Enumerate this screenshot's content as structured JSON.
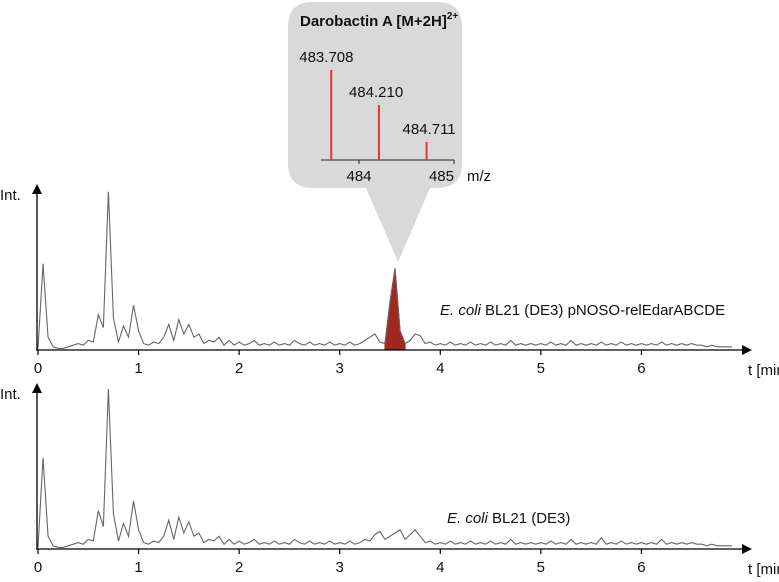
{
  "chart_data": [
    {
      "type": "line",
      "x_label": "t [min]",
      "y_label": "Int.",
      "label_italic": "E. coli",
      "label_rest": " BL21 (DE3) pNOSO-relEdarABCDE",
      "color": "#666666",
      "highlight_range": [
        3.45,
        3.65
      ],
      "highlight_color": "#a0281e",
      "xlim": [
        0,
        7.0
      ],
      "xticks": [
        0,
        1,
        2,
        3,
        4,
        5,
        6
      ],
      "ylim": [
        0,
        100
      ],
      "x": [
        0,
        0.05,
        0.1,
        0.15,
        0.2,
        0.25,
        0.3,
        0.35,
        0.4,
        0.45,
        0.5,
        0.55,
        0.6,
        0.65,
        0.7,
        0.75,
        0.8,
        0.85,
        0.9,
        0.95,
        1,
        1.05,
        1.1,
        1.15,
        1.2,
        1.25,
        1.3,
        1.35,
        1.4,
        1.45,
        1.5,
        1.55,
        1.6,
        1.65,
        1.7,
        1.75,
        1.8,
        1.85,
        1.9,
        1.95,
        2,
        2.05,
        2.1,
        2.15,
        2.2,
        2.25,
        2.3,
        2.35,
        2.4,
        2.45,
        2.5,
        2.55,
        2.6,
        2.65,
        2.7,
        2.75,
        2.8,
        2.85,
        2.9,
        2.95,
        3,
        3.05,
        3.1,
        3.15,
        3.2,
        3.25,
        3.3,
        3.35,
        3.4,
        3.45,
        3.5,
        3.55,
        3.6,
        3.65,
        3.7,
        3.75,
        3.8,
        3.85,
        3.9,
        3.95,
        4,
        4.05,
        4.1,
        4.15,
        4.2,
        4.25,
        4.3,
        4.35,
        4.4,
        4.45,
        4.5,
        4.55,
        4.6,
        4.65,
        4.7,
        4.75,
        4.8,
        4.85,
        4.9,
        4.95,
        5,
        5.05,
        5.1,
        5.15,
        5.2,
        5.25,
        5.3,
        5.35,
        5.4,
        5.45,
        5.5,
        5.55,
        5.6,
        5.65,
        5.7,
        5.75,
        5.8,
        5.85,
        5.9,
        5.95,
        6,
        6.05,
        6.1,
        6.15,
        6.2,
        6.25,
        6.3,
        6.35,
        6.4,
        6.45,
        6.5,
        6.55,
        6.6,
        6.65,
        6.7,
        6.75,
        6.8,
        6.85,
        6.9
      ],
      "values": [
        1,
        54,
        8,
        2,
        1,
        1,
        2,
        3,
        4,
        3,
        6,
        5,
        22,
        14,
        99,
        20,
        5,
        15,
        8,
        28,
        12,
        4,
        3,
        5,
        4,
        8,
        16,
        6,
        19,
        10,
        16,
        8,
        10,
        4,
        6,
        5,
        8,
        3,
        6,
        3,
        5,
        3,
        4,
        6,
        3,
        4,
        3,
        5,
        3,
        4,
        3,
        6,
        4,
        3,
        5,
        3,
        4,
        3,
        5,
        3,
        4,
        3,
        5,
        3,
        4,
        6,
        8,
        10,
        5,
        4,
        30,
        51,
        12,
        4,
        6,
        10,
        9,
        4,
        5,
        3,
        4,
        3,
        5,
        3,
        4,
        3,
        5,
        3,
        4,
        3,
        5,
        3,
        4,
        3,
        6,
        3,
        4,
        3,
        4,
        3,
        4,
        3,
        5,
        3,
        4,
        3,
        6,
        3,
        4,
        3,
        4,
        3,
        5,
        3,
        4,
        3,
        5,
        3,
        4,
        3,
        4,
        3,
        4,
        3,
        5,
        3,
        4,
        3,
        4,
        3,
        4,
        3,
        3,
        2,
        3,
        2,
        2,
        2,
        2
      ]
    },
    {
      "type": "line",
      "x_label": "t [min]",
      "y_label": "Int.",
      "label_italic": "E. coli",
      "label_rest": " BL21 (DE3)",
      "color": "#666666",
      "xlim": [
        0,
        7.0
      ],
      "xticks": [
        0,
        1,
        2,
        3,
        4,
        5,
        6
      ],
      "ylim": [
        0,
        100
      ],
      "x": [
        0,
        0.05,
        0.1,
        0.15,
        0.2,
        0.25,
        0.3,
        0.35,
        0.4,
        0.45,
        0.5,
        0.55,
        0.6,
        0.65,
        0.7,
        0.75,
        0.8,
        0.85,
        0.9,
        0.95,
        1,
        1.05,
        1.1,
        1.15,
        1.2,
        1.25,
        1.3,
        1.35,
        1.4,
        1.45,
        1.5,
        1.55,
        1.6,
        1.65,
        1.7,
        1.75,
        1.8,
        1.85,
        1.9,
        1.95,
        2,
        2.05,
        2.1,
        2.15,
        2.2,
        2.25,
        2.3,
        2.35,
        2.4,
        2.45,
        2.5,
        2.55,
        2.6,
        2.65,
        2.7,
        2.75,
        2.8,
        2.85,
        2.9,
        2.95,
        3,
        3.05,
        3.1,
        3.15,
        3.2,
        3.25,
        3.3,
        3.35,
        3.4,
        3.45,
        3.5,
        3.55,
        3.6,
        3.65,
        3.7,
        3.75,
        3.8,
        3.85,
        3.9,
        3.95,
        4,
        4.05,
        4.1,
        4.15,
        4.2,
        4.25,
        4.3,
        4.35,
        4.4,
        4.45,
        4.5,
        4.55,
        4.6,
        4.65,
        4.7,
        4.75,
        4.8,
        4.85,
        4.9,
        4.95,
        5,
        5.05,
        5.1,
        5.15,
        5.2,
        5.25,
        5.3,
        5.35,
        5.4,
        5.45,
        5.5,
        5.55,
        5.6,
        5.65,
        5.7,
        5.75,
        5.8,
        5.85,
        5.9,
        5.95,
        6,
        6.05,
        6.1,
        6.15,
        6.2,
        6.25,
        6.3,
        6.35,
        6.4,
        6.45,
        6.5,
        6.55,
        6.6,
        6.65,
        6.7,
        6.75,
        6.8,
        6.85,
        6.9
      ],
      "values": [
        1,
        57,
        8,
        2,
        1,
        1,
        2,
        3,
        4,
        3,
        6,
        5,
        24,
        14,
        100,
        22,
        5,
        16,
        8,
        30,
        12,
        4,
        3,
        5,
        4,
        8,
        18,
        6,
        20,
        10,
        17,
        8,
        10,
        4,
        6,
        5,
        8,
        3,
        6,
        3,
        5,
        3,
        4,
        6,
        3,
        4,
        3,
        5,
        3,
        4,
        3,
        6,
        4,
        3,
        5,
        3,
        4,
        3,
        5,
        3,
        4,
        3,
        5,
        3,
        4,
        6,
        5,
        9,
        11,
        6,
        8,
        10,
        12,
        6,
        9,
        12,
        8,
        4,
        5,
        3,
        4,
        3,
        5,
        3,
        4,
        3,
        5,
        3,
        4,
        3,
        5,
        3,
        4,
        3,
        6,
        3,
        4,
        3,
        4,
        3,
        4,
        3,
        5,
        3,
        4,
        3,
        6,
        3,
        4,
        3,
        4,
        3,
        7,
        3,
        4,
        3,
        5,
        3,
        4,
        3,
        4,
        3,
        4,
        3,
        6,
        3,
        4,
        3,
        4,
        3,
        4,
        3,
        3,
        2,
        3,
        2,
        2,
        2,
        2
      ]
    },
    {
      "type": "stem",
      "title": "Darobactin A [M+2H]",
      "title_superscript": "2+",
      "x_label": "m/z",
      "color": "#e8323c",
      "xlim": [
        483.6,
        485.0
      ],
      "xticks": [
        484,
        485
      ],
      "ylim": [
        0,
        100
      ],
      "x": [
        483.708,
        484.21,
        484.711
      ],
      "x_labels": [
        "483.708",
        "484.210",
        "484.711"
      ],
      "values": [
        100,
        61,
        20
      ]
    }
  ]
}
